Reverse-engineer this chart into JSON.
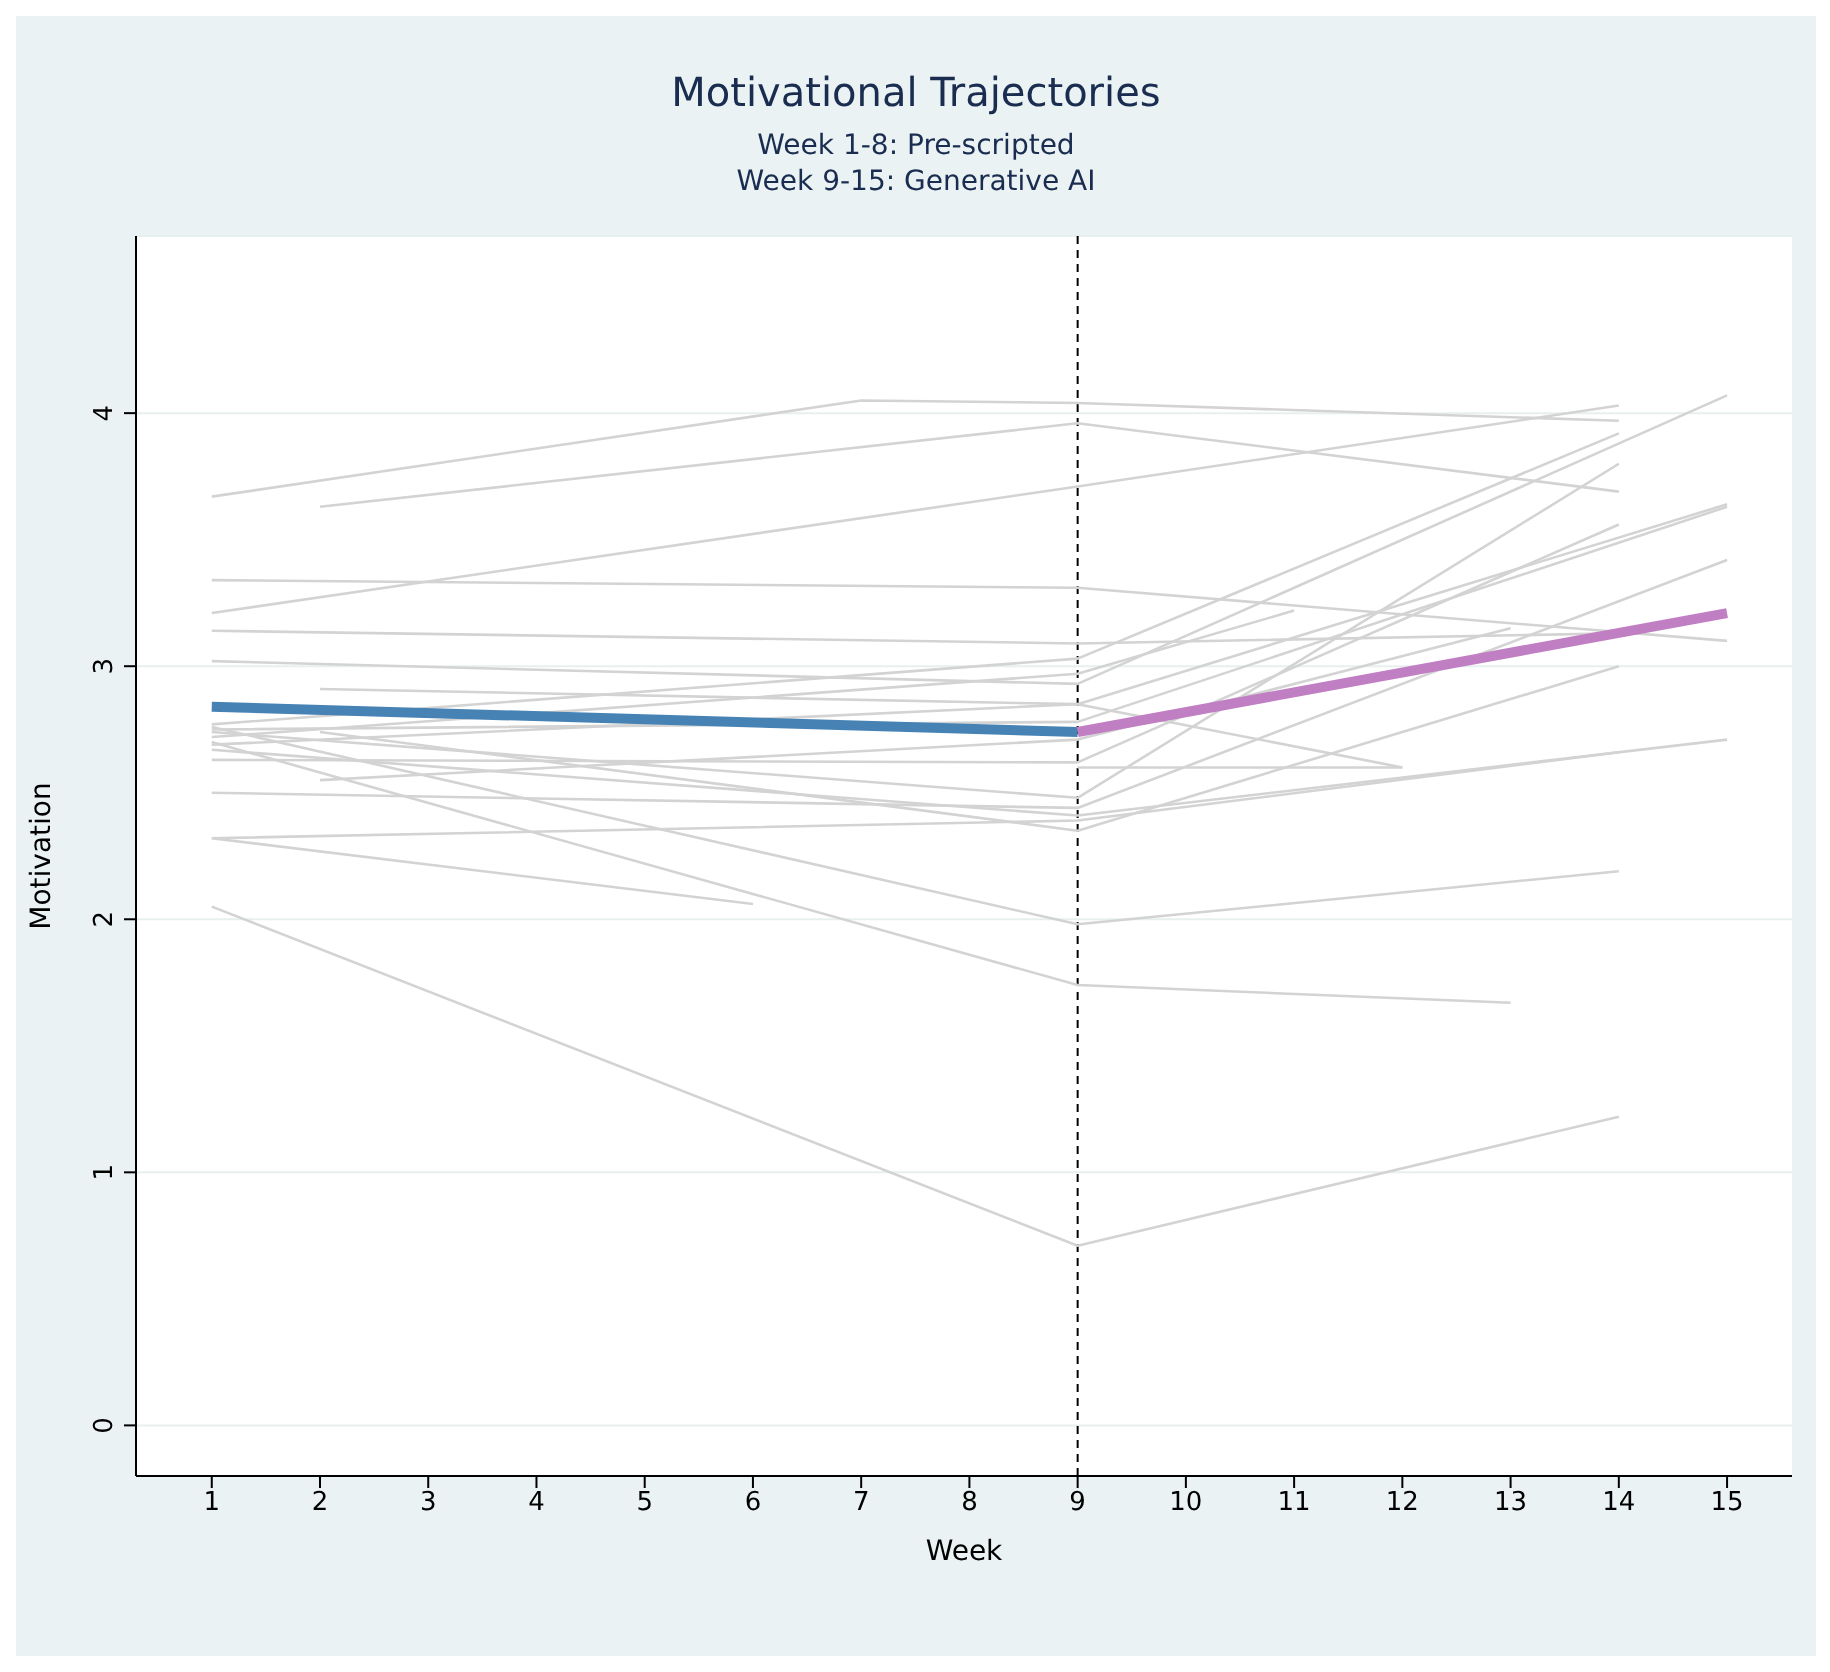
{
  "chart_data": {
    "type": "line",
    "title": "Motivational Trajectories",
    "subtitle": "Week 1-8: Pre-scripted\nWeek 9-15: Generative AI",
    "xlabel": "Week",
    "ylabel": "Motivation",
    "xlim": [
      0.3,
      15.6
    ],
    "xticks": [
      1,
      2,
      3,
      4,
      5,
      6,
      7,
      8,
      9,
      10,
      11,
      12,
      13,
      14,
      15
    ],
    "ylim": [
      -0.2,
      4.7
    ],
    "yticks": [
      0,
      1,
      2,
      3,
      4
    ],
    "grid": "y",
    "marker": "none",
    "line_style": "solid",
    "ref_lines": [
      {
        "axis": "x",
        "value": 9,
        "label": null,
        "color": "#000000",
        "line_style": "dashed"
      }
    ],
    "series": [
      {
        "color": "#d3d3d3",
        "x": [
          1,
          7,
          9,
          14
        ],
        "values": [
          3.67,
          4.05,
          4.04,
          3.97
        ]
      },
      {
        "color": "#d3d3d3",
        "x": [
          2,
          9,
          14
        ],
        "values": [
          3.63,
          3.96,
          3.69
        ]
      },
      {
        "color": "#d3d3d3",
        "x": [
          1,
          9,
          14
        ],
        "values": [
          3.21,
          3.71,
          4.03
        ]
      },
      {
        "color": "#d3d3d3",
        "x": [
          1,
          9,
          15
        ],
        "values": [
          3.34,
          3.31,
          3.1
        ]
      },
      {
        "color": "#d3d3d3",
        "x": [
          1,
          9,
          14
        ],
        "values": [
          3.14,
          3.09,
          3.13
        ]
      },
      {
        "color": "#d3d3d3",
        "x": [
          1,
          9,
          15
        ],
        "values": [
          3.02,
          2.93,
          4.07
        ]
      },
      {
        "color": "#d3d3d3",
        "x": [
          2,
          9,
          15
        ],
        "values": [
          2.91,
          2.85,
          3.64
        ]
      },
      {
        "color": "#d3d3d3",
        "x": [
          1,
          9,
          14
        ],
        "values": [
          2.77,
          3.03,
          3.92
        ]
      },
      {
        "color": "#d3d3d3",
        "x": [
          1,
          9,
          11
        ],
        "values": [
          2.72,
          2.97,
          3.22
        ]
      },
      {
        "color": "#d3d3d3",
        "x": [
          1,
          9,
          12
        ],
        "values": [
          2.69,
          2.85,
          2.6
        ]
      },
      {
        "color": "#d3d3d3",
        "x": [
          1,
          9,
          14
        ],
        "values": [
          2.63,
          2.62,
          3.56
        ]
      },
      {
        "color": "#d3d3d3",
        "x": [
          2,
          9,
          13
        ],
        "values": [
          2.55,
          2.71,
          3.15
        ]
      },
      {
        "color": "#d3d3d3",
        "x": [
          1,
          9,
          15
        ],
        "values": [
          2.5,
          2.44,
          3.42
        ]
      },
      {
        "color": "#d3d3d3",
        "x": [
          1,
          9,
          14
        ],
        "values": [
          2.74,
          2.48,
          3.8
        ]
      },
      {
        "color": "#d3d3d3",
        "x": [
          2,
          9,
          14
        ],
        "values": [
          2.74,
          2.35,
          3.0
        ]
      },
      {
        "color": "#d3d3d3",
        "x": [
          1,
          9,
          15
        ],
        "values": [
          2.67,
          2.41,
          2.71
        ]
      },
      {
        "color": "#d3d3d3",
        "x": [
          1,
          9,
          14
        ],
        "values": [
          2.32,
          2.39,
          2.66
        ]
      },
      {
        "color": "#d3d3d3",
        "x": [
          1,
          6
        ],
        "values": [
          2.32,
          2.06
        ]
      },
      {
        "color": "#d3d3d3",
        "x": [
          1,
          9,
          14
        ],
        "values": [
          2.76,
          1.98,
          2.19
        ]
      },
      {
        "color": "#d3d3d3",
        "x": [
          1,
          9,
          13
        ],
        "values": [
          2.7,
          1.74,
          1.67
        ]
      },
      {
        "color": "#d3d3d3",
        "x": [
          1,
          9,
          14
        ],
        "values": [
          2.05,
          0.71,
          1.22
        ]
      },
      {
        "color": "#d3d3d3",
        "x": [
          1,
          9,
          15
        ],
        "values": [
          2.75,
          2.78,
          3.63
        ]
      },
      {
        "color": "#d3d3d3",
        "x": [
          9,
          12
        ],
        "values": [
          2.6,
          2.6
        ]
      },
      {
        "color": "#4682b4",
        "x": [
          1,
          9
        ],
        "values": [
          2.84,
          2.74
        ]
      },
      {
        "color": "#c17fc3",
        "x": [
          9,
          15
        ],
        "values": [
          2.74,
          3.21
        ]
      }
    ]
  }
}
